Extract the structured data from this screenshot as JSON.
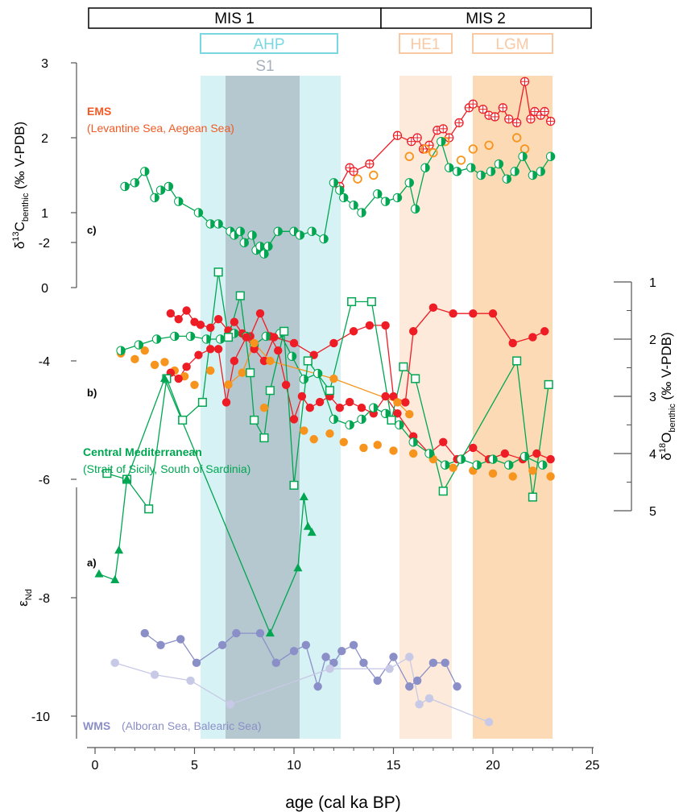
{
  "colors": {
    "ems_red": "#ee1c25",
    "ems_orange": "#f7941d",
    "central_green": "#00a651",
    "light_green": "#8dc63f",
    "wms_purple": "#8b8fc7",
    "wms_light": "#c7c9e6",
    "ahp_fill": "#c9eef2",
    "s1_fill": "#a9b9c3",
    "he1_fill": "#fde6d3",
    "lgm_fill": "#fbd3a9"
  },
  "header": {
    "mis1": "MIS 1",
    "mis2": "MIS 2",
    "ahp": "AHP",
    "s1": "S1",
    "he1": "HE1",
    "lgm": "LGM"
  },
  "labels": {
    "ems_title": "EMS",
    "ems_sub": "(Levantine Sea, Aegean Sea)",
    "central_title": "Central Mediterranean",
    "central_sub": "(Strait of Sicily, South of Sardinia)",
    "wms_title": "WMS",
    "wms_sub": "(Alboran Sea, Balearic Sea)",
    "panel_a": "a)",
    "panel_b": "b)",
    "panel_c": "c)"
  },
  "axes": {
    "x_label": "age (cal ka BP)",
    "x_ticks": [
      "0",
      "5",
      "10",
      "15",
      "20",
      "25"
    ],
    "c_ylabel": "δ13Cbenthic (‰ V-PDB)",
    "c_ticks": [
      "0",
      "1",
      "2",
      "3"
    ],
    "b_ylabel": "δ18Obenthic (‰ V-PDB)",
    "b_ticks": [
      "1",
      "2",
      "3",
      "4",
      "5"
    ],
    "a_ylabel": "εNd",
    "a_ticks": [
      "-10",
      "-8",
      "-6",
      "-4",
      "-2"
    ]
  },
  "chart_data": [
    {
      "type": "line",
      "panel": "c",
      "ylabel": "δ13Cbenthic (‰ V-PDB)",
      "ylim": [
        0,
        3
      ],
      "xlim": [
        0,
        25
      ],
      "series": [
        {
          "name": "EMS",
          "color": "#ee1c25",
          "x": [
            12.3,
            12.8,
            13.0,
            13.8,
            15.2,
            15.9,
            16.2,
            16.5,
            16.8,
            17.2,
            17.5,
            17.8,
            18.3,
            18.8,
            19.0,
            19.5,
            19.8,
            20.1,
            20.5,
            20.8,
            21.2,
            21.6,
            21.9,
            22.1,
            22.4,
            22.6,
            22.9
          ],
          "y": [
            1.35,
            1.6,
            1.55,
            1.65,
            2.03,
            1.95,
            2.0,
            1.85,
            1.9,
            2.1,
            2.12,
            2.0,
            2.2,
            2.4,
            2.45,
            2.38,
            2.3,
            2.28,
            2.4,
            2.25,
            2.2,
            2.75,
            2.25,
            2.35,
            2.3,
            2.35,
            2.22
          ]
        },
        {
          "name": "EMS (open)",
          "color": "#f7941d",
          "x": [
            13.2,
            14.0,
            15.8,
            16.6,
            17.0,
            17.6,
            18.4,
            19.0,
            19.8,
            21.2,
            21.6
          ],
          "y": [
            1.45,
            1.5,
            1.75,
            1.85,
            1.8,
            1.95,
            1.7,
            1.85,
            1.9,
            2.0,
            1.85
          ]
        },
        {
          "name": "Central Mediterranean",
          "color": "#00a651",
          "x": [
            1.5,
            2.0,
            2.5,
            3.0,
            3.3,
            3.7,
            4.2,
            5.2,
            5.8,
            6.2,
            6.8,
            7.0,
            7.3,
            7.5,
            7.9,
            8.1,
            8.3,
            8.5,
            8.7,
            9.2,
            10.0,
            10.3,
            10.9,
            11.5,
            12.0,
            12.3,
            12.5,
            13.0,
            13.4,
            14.2,
            14.6,
            15.2,
            15.8,
            16.1,
            16.6,
            17.4,
            17.8,
            18.2,
            18.9,
            19.4,
            19.9,
            20.3,
            20.7,
            21.1,
            21.5,
            22.0,
            22.4,
            22.9
          ],
          "y": [
            1.35,
            1.4,
            1.55,
            1.2,
            1.3,
            1.35,
            1.15,
            1.0,
            0.85,
            0.85,
            0.75,
            0.7,
            0.75,
            0.6,
            0.7,
            0.5,
            0.55,
            0.45,
            0.55,
            0.75,
            0.75,
            0.7,
            0.75,
            0.65,
            1.4,
            1.3,
            1.2,
            1.1,
            1.0,
            1.25,
            1.15,
            1.2,
            1.4,
            1.05,
            1.6,
            1.95,
            1.6,
            1.55,
            1.6,
            1.5,
            1.55,
            1.65,
            1.45,
            1.55,
            1.75,
            1.5,
            1.55,
            1.75
          ]
        }
      ]
    },
    {
      "type": "line",
      "panel": "b",
      "ylabel": "δ18Obenthic (‰ V-PDB)",
      "ylim": [
        5,
        1
      ],
      "xlim": [
        0,
        25
      ],
      "series": [
        {
          "name": "EMS",
          "color": "#ee1c25",
          "x": [
            3.8,
            4.2,
            4.6,
            5.0,
            5.3,
            5.8,
            6.2,
            6.7,
            7.0,
            7.4,
            7.8,
            8.3,
            8.8,
            9.2,
            9.6,
            10.0,
            10.4,
            10.8,
            11.3,
            11.8,
            12.3,
            12.8,
            13.4,
            14.0,
            14.6,
            15.2,
            16.0,
            16.8,
            17.5,
            18.2,
            19.0,
            19.8,
            20.6,
            21.5,
            22.2,
            22.9
          ],
          "y": [
            1.55,
            1.65,
            1.5,
            1.7,
            1.75,
            1.8,
            1.65,
            1.85,
            1.7,
            1.9,
            1.95,
            1.55,
            1.95,
            2.2,
            2.8,
            3.4,
            3.0,
            3.2,
            3.1,
            3.0,
            3.2,
            3.1,
            3.2,
            3.3,
            3.0,
            3.3,
            3.7,
            4.0,
            3.8,
            4.1,
            3.9,
            4.1,
            4.0,
            4.1,
            4.0,
            4.1
          ]
        },
        {
          "name": "EMS (orange)",
          "color": "#f7941d",
          "x": [
            1.3,
            2.0,
            2.5,
            3.0,
            3.5,
            4.0,
            4.5,
            5.0,
            5.8,
            8.5,
            10.5,
            11.0,
            11.8,
            12.5,
            13.5,
            14.2,
            15.0,
            16.0,
            17.0,
            18.0,
            19.0,
            20.0,
            21.0,
            22.0,
            22.9
          ],
          "y": [
            2.25,
            2.35,
            2.2,
            2.45,
            2.4,
            2.55,
            2.65,
            2.8,
            2.55,
            3.2,
            3.6,
            3.75,
            3.65,
            3.8,
            3.9,
            3.85,
            3.95,
            4.0,
            4.1,
            4.25,
            4.3,
            4.35,
            4.4,
            4.3,
            4.4
          ]
        },
        {
          "name": "Central Mediterranean",
          "color": "#00a651",
          "x": [
            1.3,
            2.2,
            3.1,
            4.0,
            4.8,
            5.6,
            6.3,
            7.0,
            7.6,
            8.0,
            8.6,
            9.3,
            9.9,
            10.5,
            11.2,
            12.0,
            12.8,
            13.4,
            14.0,
            14.6,
            15.3,
            16.0,
            16.8,
            17.6,
            18.4,
            19.2,
            20.0,
            20.8,
            21.6,
            22.5
          ],
          "y": [
            2.2,
            2.1,
            2.0,
            1.95,
            1.95,
            2.0,
            2.0,
            1.9,
            1.95,
            2.1,
            1.95,
            1.9,
            2.3,
            2.7,
            2.6,
            3.4,
            3.5,
            3.4,
            3.2,
            3.3,
            3.5,
            3.8,
            4.0,
            4.2,
            4.1,
            4.2,
            4.1,
            4.2,
            4.05,
            4.2
          ]
        }
      ]
    },
    {
      "type": "line",
      "panel": "a",
      "ylabel": "εNd",
      "ylim": [
        -11,
        -1
      ],
      "xlim": [
        0,
        25
      ],
      "series": [
        {
          "name": "EMS",
          "color": "#ee1c25",
          "x": [
            3.8,
            4.2,
            4.6,
            5.2,
            5.8,
            6.2,
            6.6,
            7.0,
            7.6,
            8.0,
            8.5,
            9.0,
            10.0,
            11.0,
            12.0,
            13.0,
            13.8,
            14.6,
            15.0,
            15.6,
            16.0,
            17.0,
            18.0,
            19.0,
            20.0,
            21.0,
            22.0,
            22.6
          ],
          "y": [
            -4.2,
            -4.3,
            -4.1,
            -3.9,
            -3.8,
            -3.8,
            -4.7,
            -4.0,
            -3.6,
            -3.8,
            -4.0,
            -3.6,
            -3.7,
            -3.9,
            -3.7,
            -3.5,
            -3.4,
            -3.4,
            -4.6,
            -4.7,
            -3.5,
            -3.1,
            -3.2,
            -3.2,
            -3.2,
            -3.7,
            -3.6,
            -3.5
          ]
        },
        {
          "name": "EMS (orange)",
          "color": "#f7941d",
          "x": [
            6.7,
            7.4,
            8.0,
            8.8,
            12.0,
            15.2,
            15.8
          ],
          "y": [
            -4.4,
            -4.2,
            -3.7,
            -4.0,
            -4.3,
            -4.7,
            -4.9
          ]
        },
        {
          "name": "Central Mediterranean",
          "color": "#00a651",
          "x": [
            0.6,
            1.6,
            2.7,
            3.6,
            4.4,
            5.4,
            6.2,
            6.7,
            7.3,
            7.8,
            8.0,
            8.5,
            8.8,
            9.5,
            10.0,
            10.7,
            11.8,
            12.9,
            13.9,
            14.9,
            15.5,
            16.1,
            17.5,
            21.2,
            22.0,
            22.8
          ],
          "y": [
            -5.9,
            -6.0,
            -6.5,
            -4.3,
            -5.0,
            -4.7,
            -2.5,
            -3.6,
            -2.9,
            -4.2,
            -5.0,
            -5.3,
            -4.5,
            -3.5,
            -6.1,
            -4.0,
            -4.5,
            -3.0,
            -3.0,
            -5.0,
            -4.1,
            -4.3,
            -6.2,
            -4.0,
            -6.3,
            -4.4
          ]
        },
        {
          "name": "Central Mediterranean (triangles)",
          "color": "#00a651",
          "x": [
            0.2,
            1.0,
            1.2,
            1.6,
            3.5,
            8.8,
            10.2,
            10.5,
            10.7,
            10.9
          ],
          "y": [
            -7.6,
            -7.7,
            -7.2,
            -6.0,
            -4.3,
            -8.6,
            -7.5,
            -6.3,
            -6.8,
            -6.9
          ]
        },
        {
          "name": "WMS",
          "color": "#8b8fc7",
          "x": [
            2.5,
            3.3,
            4.3,
            5.1,
            6.4,
            7.1,
            8.3,
            9.1,
            10.0,
            10.6,
            11.2,
            11.6,
            12.0,
            12.4,
            13.0,
            13.5,
            14.2,
            15.0,
            15.8,
            16.2,
            17.0,
            17.6,
            18.2
          ],
          "y": [
            -8.6,
            -8.8,
            -8.7,
            -9.1,
            -8.8,
            -8.6,
            -8.6,
            -9.1,
            -8.9,
            -8.8,
            -9.5,
            -9.0,
            -9.1,
            -8.9,
            -8.8,
            -9.1,
            -9.4,
            -9.0,
            -9.5,
            -9.4,
            -9.1,
            -9.1,
            -9.5
          ]
        },
        {
          "name": "WMS (light)",
          "color": "#c7c9e6",
          "x": [
            1.0,
            3.0,
            4.8,
            6.8,
            11.8,
            14.8,
            15.8,
            16.3,
            16.8,
            19.8
          ],
          "y": [
            -9.1,
            -9.3,
            -9.4,
            -9.8,
            -9.2,
            -9.2,
            -9.0,
            -9.8,
            -9.7,
            -10.1
          ]
        }
      ]
    }
  ]
}
